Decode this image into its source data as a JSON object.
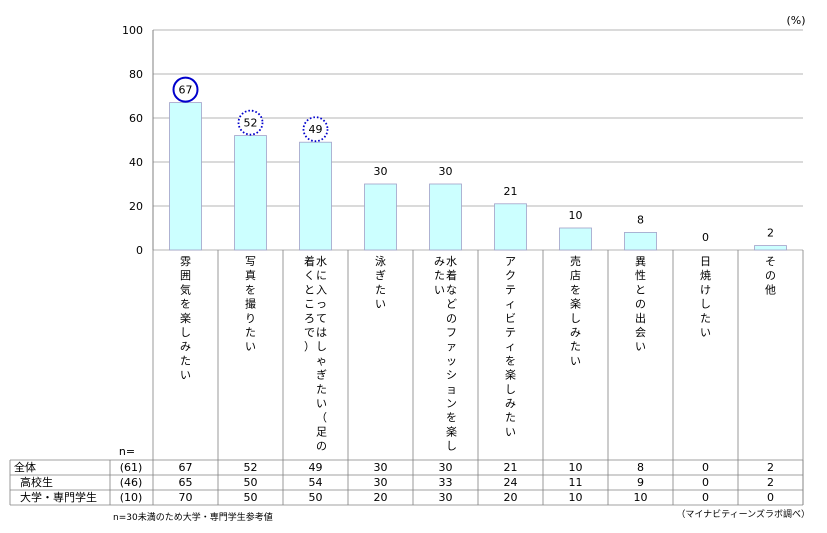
{
  "chart_data": {
    "type": "bar",
    "unit": "(%)",
    "ylim": [
      0,
      100
    ],
    "yticks": [
      0,
      20,
      40,
      60,
      80,
      100
    ],
    "grid": true,
    "categories": [
      "雰囲気を楽しみたい",
      "写真を撮りたい",
      "水に入ってはしゃぎたい（足の着くところで）",
      "泳ぎたい",
      "水着などのファッションを楽しみたい",
      "アクティビティを楽しみたい",
      "売店を楽しみたい",
      "異性との出会い",
      "日焼けしたい",
      "その他"
    ],
    "values": [
      67,
      52,
      49,
      30,
      30,
      21,
      10,
      8,
      0,
      2
    ],
    "highlights": [
      {
        "index": 0,
        "style": "solid"
      },
      {
        "index": 1,
        "style": "dotted"
      },
      {
        "index": 2,
        "style": "dotted"
      }
    ],
    "colors": {
      "bar": "#ccffff",
      "bar_border": "#a0a0c8",
      "circle": "#0000cc"
    }
  },
  "table": {
    "n_label": "n=",
    "rows": [
      {
        "label": "全体",
        "n": "(61)",
        "values": [
          "67",
          "52",
          "49",
          "30",
          "30",
          "21",
          "10",
          "8",
          "0",
          "2"
        ]
      },
      {
        "label": "高校生",
        "n": "(46)",
        "values": [
          "65",
          "50",
          "54",
          "30",
          "33",
          "24",
          "11",
          "9",
          "0",
          "2"
        ]
      },
      {
        "label": "大学・専門学生",
        "n": "(10)",
        "values": [
          "70",
          "50",
          "50",
          "20",
          "30",
          "20",
          "10",
          "10",
          "0",
          "0"
        ]
      }
    ]
  },
  "notes": {
    "left": "n=30未満のため大学・専門学生参考値",
    "right": "（マイナビティーンズラボ調べ）"
  }
}
